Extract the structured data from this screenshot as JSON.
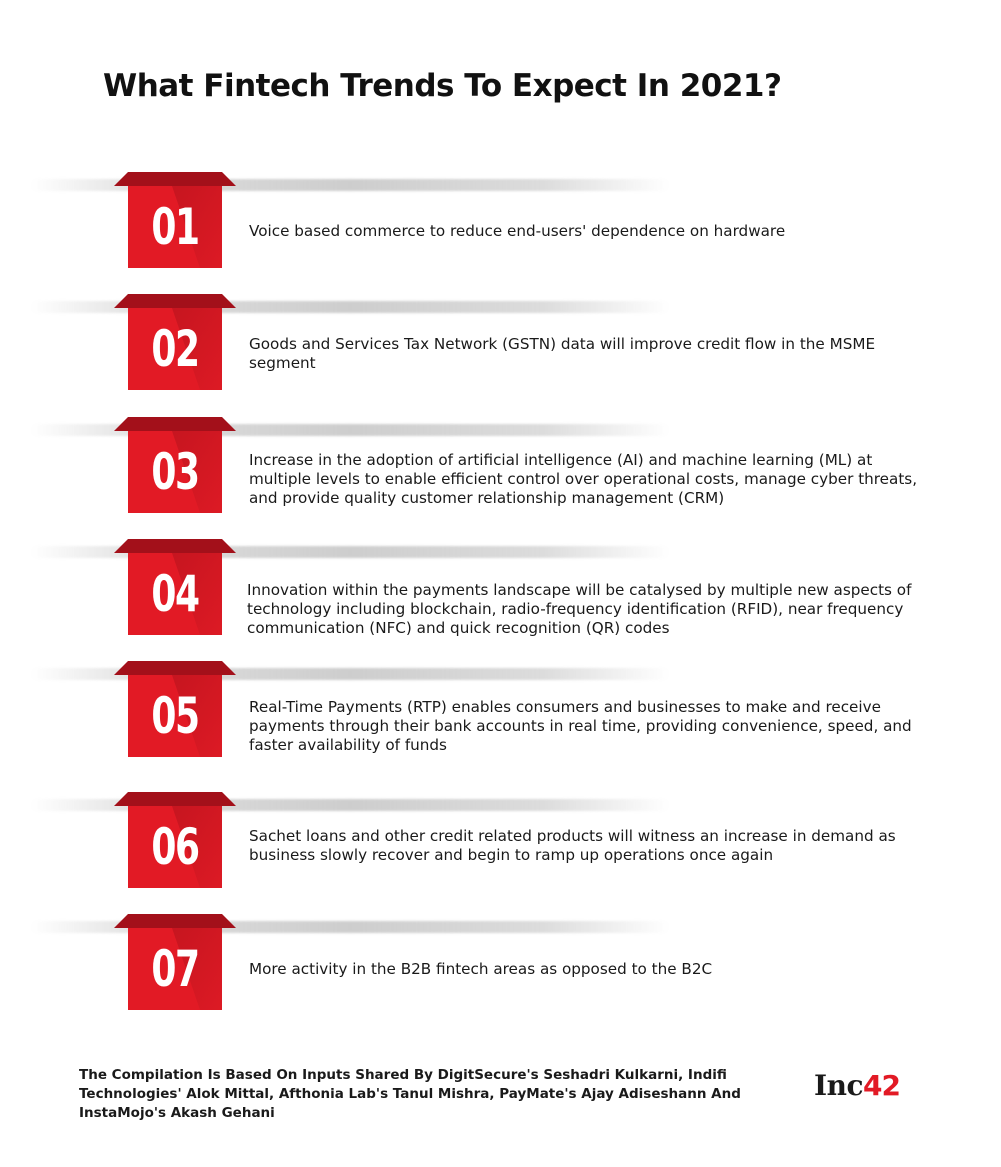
{
  "title": "What Fintech Trends To Expect In 2021?",
  "colors": {
    "accent": "#e21a25",
    "accent_dark": "#a3101a",
    "text": "#1a1a1a"
  },
  "trends": [
    {
      "number": "01",
      "text": "Voice based commerce to reduce end-users' dependence on hardware"
    },
    {
      "number": "02",
      "text": "Goods and Services Tax Network (GSTN) data will improve credit flow in the MSME segment"
    },
    {
      "number": "03",
      "text": "Increase in the adoption of artificial intelligence (AI) and machine learning (ML) at multiple levels to enable efficient control over operational costs, manage cyber threats, and provide quality customer relationship management (CRM)"
    },
    {
      "number": "04",
      "text": "Innovation within the payments landscape will be catalysed by multiple new aspects of technology including blockchain, radio-frequency identification (RFID), near frequency communication (NFC) and quick recognition (QR) codes"
    },
    {
      "number": "05",
      "text": "Real-Time Payments (RTP) enables consumers and businesses to make and receive payments through their bank accounts in real time, providing convenience, speed, and faster availability of funds"
    },
    {
      "number": "06",
      "text": "Sachet loans and other credit related products will witness an increase in demand as business slowly recover and begin to ramp up operations once again"
    },
    {
      "number": "07",
      "text": "More activity in the B2B fintech areas as opposed to the B2C"
    }
  ],
  "footer": {
    "note": "The Compilation Is Based On Inputs Shared By DigitSecure's Seshadri Kulkarni, Indifi Technologies' Alok Mittal, Afthonia Lab's Tanul Mishra, PayMate's Ajay Adiseshann And InstaMojo's Akash Gehani",
    "logo_word": "Inc",
    "logo_number": "42"
  }
}
